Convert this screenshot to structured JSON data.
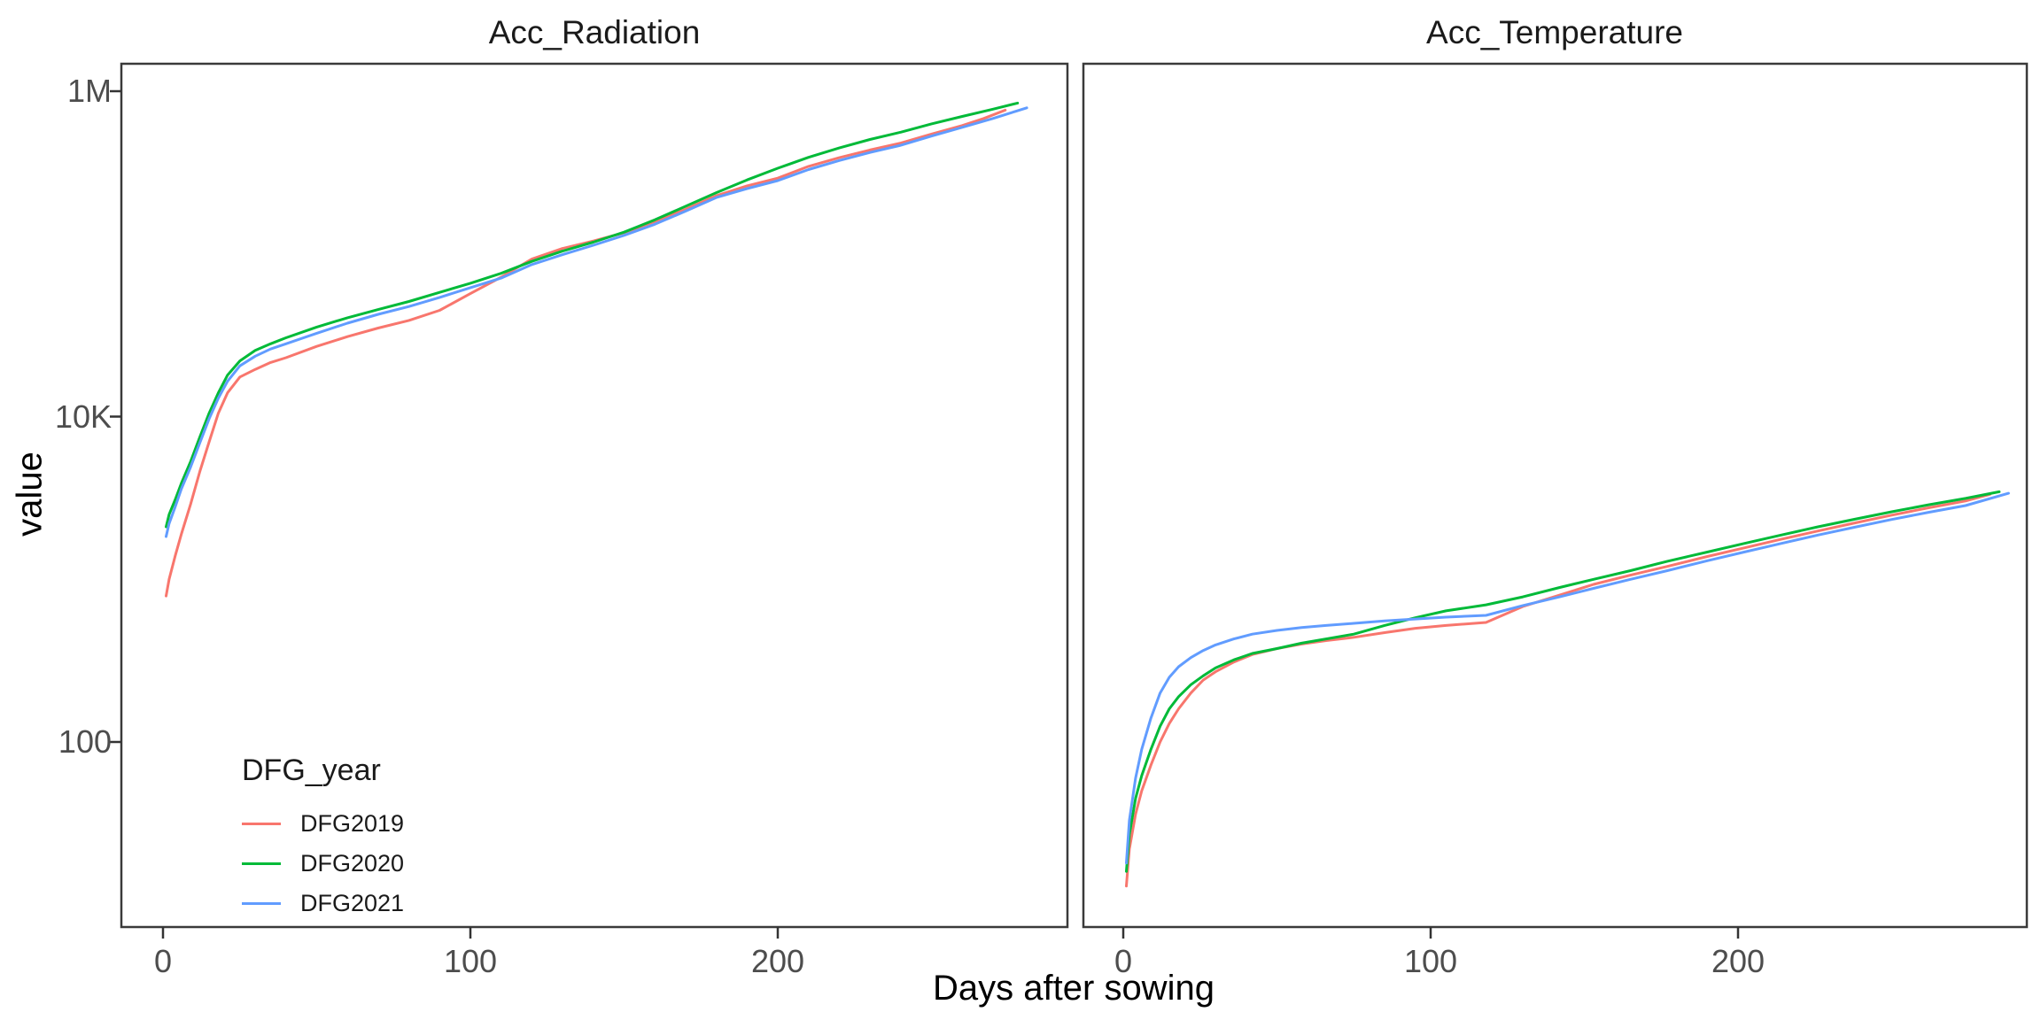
{
  "chart_data": {
    "type": "line",
    "y_scale": "log10",
    "x_label": "Days after sowing",
    "y_label": "value",
    "y_ticks": [
      {
        "label": "1M",
        "value": 1000000
      },
      {
        "label": "10K",
        "value": 10000
      },
      {
        "label": "100",
        "value": 100
      }
    ],
    "x_ticks": [
      {
        "label": "0",
        "value": 0
      },
      {
        "label": "100",
        "value": 100
      },
      {
        "label": "200",
        "value": 200
      }
    ],
    "x_range": [
      -13,
      294
    ],
    "y_range_log": [
      7.3,
      1470000
    ],
    "grid": "off",
    "legend": {
      "title": "DFG_year",
      "position": "inside bottom-left of first panel",
      "entries": [
        {
          "label": "DFG2019",
          "color": "#F8766D"
        },
        {
          "label": "DFG2020",
          "color": "#00BA38"
        },
        {
          "label": "DFG2021",
          "color": "#619CFF"
        }
      ]
    },
    "facets": [
      {
        "title": "Acc_Radiation",
        "series": [
          {
            "name": "DFG2019",
            "color": "#F8766D",
            "points": [
              [
                1,
                790
              ],
              [
                2,
                1000
              ],
              [
                4,
                1400
              ],
              [
                6,
                1900
              ],
              [
                9,
                2900
              ],
              [
                12,
                4600
              ],
              [
                15,
                7000
              ],
              [
                18,
                10500
              ],
              [
                21,
                14000
              ],
              [
                25,
                17500
              ],
              [
                30,
                19500
              ],
              [
                35,
                21500
              ],
              [
                40,
                23000
              ],
              [
                50,
                27000
              ],
              [
                60,
                31000
              ],
              [
                70,
                35000
              ],
              [
                80,
                39000
              ],
              [
                90,
                45000
              ],
              [
                100,
                57000
              ],
              [
                110,
                72000
              ],
              [
                120,
                93000
              ],
              [
                130,
                108000
              ],
              [
                140,
                120000
              ],
              [
                150,
                135000
              ],
              [
                160,
                158000
              ],
              [
                170,
                188000
              ],
              [
                180,
                228000
              ],
              [
                190,
                262000
              ],
              [
                200,
                292000
              ],
              [
                210,
                345000
              ],
              [
                220,
                390000
              ],
              [
                230,
                435000
              ],
              [
                240,
                480000
              ],
              [
                250,
                545000
              ],
              [
                260,
                615000
              ],
              [
                267,
                680000
              ],
              [
                274,
                765000
              ]
            ]
          },
          {
            "name": "DFG2020",
            "color": "#00BA38",
            "points": [
              [
                1,
                2100
              ],
              [
                2,
                2500
              ],
              [
                4,
                3100
              ],
              [
                6,
                3900
              ],
              [
                9,
                5300
              ],
              [
                12,
                7500
              ],
              [
                15,
                10500
              ],
              [
                18,
                14000
              ],
              [
                21,
                18000
              ],
              [
                25,
                22000
              ],
              [
                30,
                25500
              ],
              [
                35,
                28000
              ],
              [
                40,
                30500
              ],
              [
                50,
                35500
              ],
              [
                60,
                40500
              ],
              [
                70,
                45500
              ],
              [
                80,
                51000
              ],
              [
                90,
                58000
              ],
              [
                100,
                66000
              ],
              [
                110,
                76000
              ],
              [
                120,
                90000
              ],
              [
                130,
                104000
              ],
              [
                140,
                118000
              ],
              [
                150,
                136000
              ],
              [
                160,
                162000
              ],
              [
                170,
                196000
              ],
              [
                180,
                238000
              ],
              [
                190,
                285000
              ],
              [
                200,
                336000
              ],
              [
                210,
                392000
              ],
              [
                220,
                448000
              ],
              [
                230,
                505000
              ],
              [
                240,
                560000
              ],
              [
                250,
                630000
              ],
              [
                260,
                700000
              ],
              [
                270,
                775000
              ],
              [
                278,
                845000
              ]
            ]
          },
          {
            "name": "DFG2021",
            "color": "#619CFF",
            "points": [
              [
                1,
                1830
              ],
              [
                2,
                2200
              ],
              [
                4,
                2800
              ],
              [
                6,
                3600
              ],
              [
                9,
                4900
              ],
              [
                12,
                6900
              ],
              [
                15,
                9700
              ],
              [
                18,
                13000
              ],
              [
                21,
                16500
              ],
              [
                25,
                20500
              ],
              [
                30,
                23500
              ],
              [
                35,
                26000
              ],
              [
                40,
                28000
              ],
              [
                50,
                32500
              ],
              [
                60,
                37500
              ],
              [
                70,
                42500
              ],
              [
                80,
                47500
              ],
              [
                90,
                54000
              ],
              [
                100,
                62000
              ],
              [
                110,
                71000
              ],
              [
                120,
                86000
              ],
              [
                130,
                99000
              ],
              [
                140,
                113000
              ],
              [
                150,
                130000
              ],
              [
                160,
                152000
              ],
              [
                170,
                183000
              ],
              [
                180,
                222000
              ],
              [
                190,
                252000
              ],
              [
                200,
                282000
              ],
              [
                210,
                330000
              ],
              [
                220,
                375000
              ],
              [
                230,
                420000
              ],
              [
                240,
                465000
              ],
              [
                250,
                530000
              ],
              [
                260,
                600000
              ],
              [
                270,
                680000
              ],
              [
                281,
                790000
              ]
            ]
          }
        ]
      },
      {
        "title": "Acc_Temperature",
        "series": [
          {
            "name": "DFG2019",
            "color": "#F8766D",
            "points": [
              [
                1,
                13
              ],
              [
                2,
                22
              ],
              [
                4,
                36
              ],
              [
                6,
                50
              ],
              [
                9,
                72
              ],
              [
                12,
                100
              ],
              [
                15,
                130
              ],
              [
                18,
                160
              ],
              [
                22,
                200
              ],
              [
                26,
                240
              ],
              [
                30,
                270
              ],
              [
                36,
                310
              ],
              [
                42,
                345
              ],
              [
                50,
                375
              ],
              [
                58,
                400
              ],
              [
                66,
                420
              ],
              [
                75,
                440
              ],
              [
                85,
                470
              ],
              [
                95,
                500
              ],
              [
                105,
                520
              ],
              [
                118,
                543
              ],
              [
                130,
                680
              ],
              [
                142,
                800
              ],
              [
                153,
                930
              ],
              [
                165,
                1060
              ],
              [
                177,
                1200
              ],
              [
                190,
                1380
              ],
              [
                202,
                1560
              ],
              [
                214,
                1760
              ],
              [
                226,
                1980
              ],
              [
                238,
                2220
              ],
              [
                250,
                2480
              ],
              [
                262,
                2750
              ],
              [
                274,
                3030
              ],
              [
                282,
                3330
              ]
            ]
          },
          {
            "name": "DFG2020",
            "color": "#00BA38",
            "points": [
              [
                1,
                16
              ],
              [
                2,
                27
              ],
              [
                4,
                45
              ],
              [
                6,
                62
              ],
              [
                9,
                90
              ],
              [
                12,
                125
              ],
              [
                15,
                160
              ],
              [
                18,
                190
              ],
              [
                22,
                225
              ],
              [
                26,
                255
              ],
              [
                30,
                285
              ],
              [
                36,
                320
              ],
              [
                42,
                350
              ],
              [
                50,
                375
              ],
              [
                58,
                405
              ],
              [
                66,
                430
              ],
              [
                75,
                460
              ],
              [
                85,
                520
              ],
              [
                95,
                580
              ],
              [
                105,
                640
              ],
              [
                118,
                697
              ],
              [
                130,
                780
              ],
              [
                142,
                890
              ],
              [
                153,
                1000
              ],
              [
                165,
                1130
              ],
              [
                177,
                1290
              ],
              [
                190,
                1470
              ],
              [
                202,
                1660
              ],
              [
                214,
                1870
              ],
              [
                226,
                2100
              ],
              [
                238,
                2340
              ],
              [
                250,
                2600
              ],
              [
                262,
                2870
              ],
              [
                274,
                3140
              ],
              [
                285,
                3450
              ]
            ]
          },
          {
            "name": "DFG2021",
            "color": "#619CFF",
            "points": [
              [
                1,
                18
              ],
              [
                2,
                33
              ],
              [
                4,
                60
              ],
              [
                6,
                90
              ],
              [
                9,
                140
              ],
              [
                12,
                200
              ],
              [
                15,
                250
              ],
              [
                18,
                290
              ],
              [
                22,
                330
              ],
              [
                26,
                365
              ],
              [
                30,
                395
              ],
              [
                36,
                430
              ],
              [
                42,
                460
              ],
              [
                50,
                485
              ],
              [
                58,
                505
              ],
              [
                66,
                520
              ],
              [
                75,
                536
              ],
              [
                85,
                555
              ],
              [
                95,
                570
              ],
              [
                105,
                585
              ],
              [
                118,
                600
              ],
              [
                130,
                690
              ],
              [
                142,
                780
              ],
              [
                153,
                880
              ],
              [
                165,
                1000
              ],
              [
                177,
                1130
              ],
              [
                190,
                1300
              ],
              [
                202,
                1470
              ],
              [
                214,
                1660
              ],
              [
                226,
                1870
              ],
              [
                238,
                2090
              ],
              [
                250,
                2330
              ],
              [
                262,
                2580
              ],
              [
                274,
                2840
              ],
              [
                288,
                3380
              ]
            ]
          }
        ]
      }
    ]
  }
}
